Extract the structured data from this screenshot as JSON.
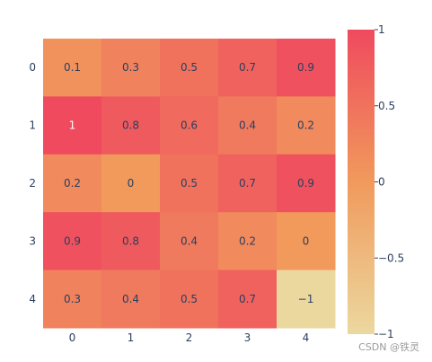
{
  "chart_data": {
    "type": "heatmap",
    "x": [
      "0",
      "1",
      "2",
      "3",
      "4"
    ],
    "y": [
      "0",
      "1",
      "2",
      "3",
      "4"
    ],
    "z": [
      [
        0.1,
        0.3,
        0.5,
        0.7,
        0.9
      ],
      [
        1,
        0.8,
        0.6,
        0.4,
        0.2
      ],
      [
        0.2,
        0,
        0.5,
        0.7,
        0.9
      ],
      [
        0.9,
        0.8,
        0.4,
        0.2,
        0
      ],
      [
        0.3,
        0.4,
        0.5,
        0.7,
        -1
      ]
    ],
    "cell_labels": [
      [
        "0.1",
        "0.3",
        "0.5",
        "0.7",
        "0.9"
      ],
      [
        "1",
        "0.8",
        "0.6",
        "0.4",
        "0.2"
      ],
      [
        "0.2",
        "0",
        "0.5",
        "0.7",
        "0.9"
      ],
      [
        "0.9",
        "0.8",
        "0.4",
        "0.2",
        "0"
      ],
      [
        "0.3",
        "0.4",
        "0.5",
        "0.7",
        "−1"
      ]
    ],
    "zlim": [
      -1,
      1
    ],
    "colorbar": {
      "ticks": [
        1,
        0.5,
        0,
        -0.5,
        -1
      ],
      "tick_labels": [
        "1",
        "0.5",
        "0",
        "−0.5",
        "−1"
      ]
    },
    "colorscale": [
      "#ebd89f",
      "#f19a5c",
      "#ef4a5e"
    ],
    "grid": false,
    "y_reversed": true
  },
  "watermark": "CSDN @铁灵"
}
